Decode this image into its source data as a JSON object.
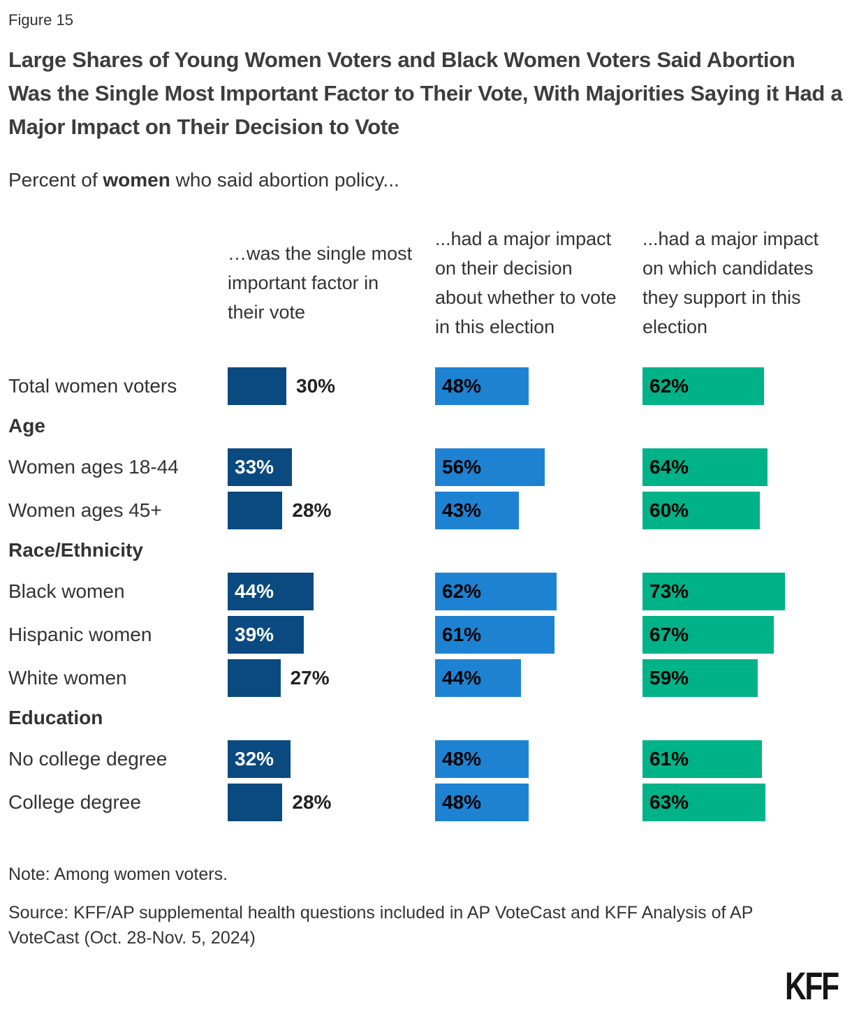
{
  "figure_label": "Figure 15",
  "title": "Large Shares of Young Women Voters and Black Women Voters Said Abortion Was the Single Most Important Factor to Their Vote, With Majorities Saying it Had a Major Impact on Their Decision to Vote",
  "subtitle": {
    "prefix": "Percent of ",
    "bold": "women",
    "suffix": " who said abortion policy..."
  },
  "columns": [
    {
      "header": "…was the single most important factor in their vote",
      "color": "#0a4a80"
    },
    {
      "header": "...had a major impact on their decision about whether to vote in this election",
      "color": "#1e82d2"
    },
    {
      "header": "...had a major impact on which candidates they support in this election",
      "color": "#00b287"
    }
  ],
  "rows": [
    {
      "type": "data",
      "label": "Total women voters",
      "values": [
        30,
        48,
        62
      ]
    },
    {
      "type": "section",
      "label": "Age"
    },
    {
      "type": "data",
      "label": "Women ages 18-44",
      "values": [
        33,
        56,
        64
      ]
    },
    {
      "type": "data",
      "label": "Women ages 45+",
      "values": [
        28,
        43,
        60
      ]
    },
    {
      "type": "section",
      "label": "Race/Ethnicity"
    },
    {
      "type": "data",
      "label": "Black women",
      "values": [
        44,
        62,
        73
      ]
    },
    {
      "type": "data",
      "label": "Hispanic women",
      "values": [
        39,
        61,
        67
      ]
    },
    {
      "type": "data",
      "label": "White women",
      "values": [
        27,
        44,
        59
      ]
    },
    {
      "type": "section",
      "label": "Education"
    },
    {
      "type": "data",
      "label": "No college degree",
      "values": [
        32,
        48,
        61
      ]
    },
    {
      "type": "data",
      "label": "College degree",
      "values": [
        28,
        48,
        63
      ]
    }
  ],
  "note": "Note: Among women voters.",
  "source": "Source: KFF/AP supplemental health questions included in AP VoteCast and KFF Analysis of AP VoteCast (Oct. 28-Nov. 5, 2024)",
  "logo": "KFF",
  "chart_data": {
    "type": "bar",
    "orientation": "horizontal",
    "title": "Large Shares of Young Women Voters and Black Women Voters Said Abortion Was the Single Most Important Factor to Their Vote, With Majorities Saying it Had a Major Impact on Their Decision to Vote",
    "subtitle": "Percent of women who said abortion policy...",
    "categories": [
      "Total women voters",
      "Women ages 18-44",
      "Women ages 45+",
      "Black women",
      "Hispanic women",
      "White women",
      "No college degree",
      "College degree"
    ],
    "groups": [
      {
        "name": "Age",
        "categories": [
          "Women ages 18-44",
          "Women ages 45+"
        ]
      },
      {
        "name": "Race/Ethnicity",
        "categories": [
          "Black women",
          "Hispanic women",
          "White women"
        ]
      },
      {
        "name": "Education",
        "categories": [
          "No college degree",
          "College degree"
        ]
      }
    ],
    "series": [
      {
        "name": "…was the single most important factor in their vote",
        "values": [
          30,
          33,
          28,
          44,
          39,
          27,
          32,
          28
        ],
        "color": "#0a4a80"
      },
      {
        "name": "...had a major impact on their decision about whether to vote in this election",
        "values": [
          48,
          56,
          43,
          62,
          61,
          44,
          48,
          48
        ],
        "color": "#1e82d2"
      },
      {
        "name": "...had a major impact on which candidates they support in this election",
        "values": [
          62,
          64,
          60,
          73,
          67,
          59,
          61,
          63
        ],
        "color": "#00b287"
      }
    ],
    "unit": "%",
    "xlim": [
      0,
      100
    ],
    "grid": false,
    "value_labels": true,
    "legend_position": "column-headers"
  }
}
